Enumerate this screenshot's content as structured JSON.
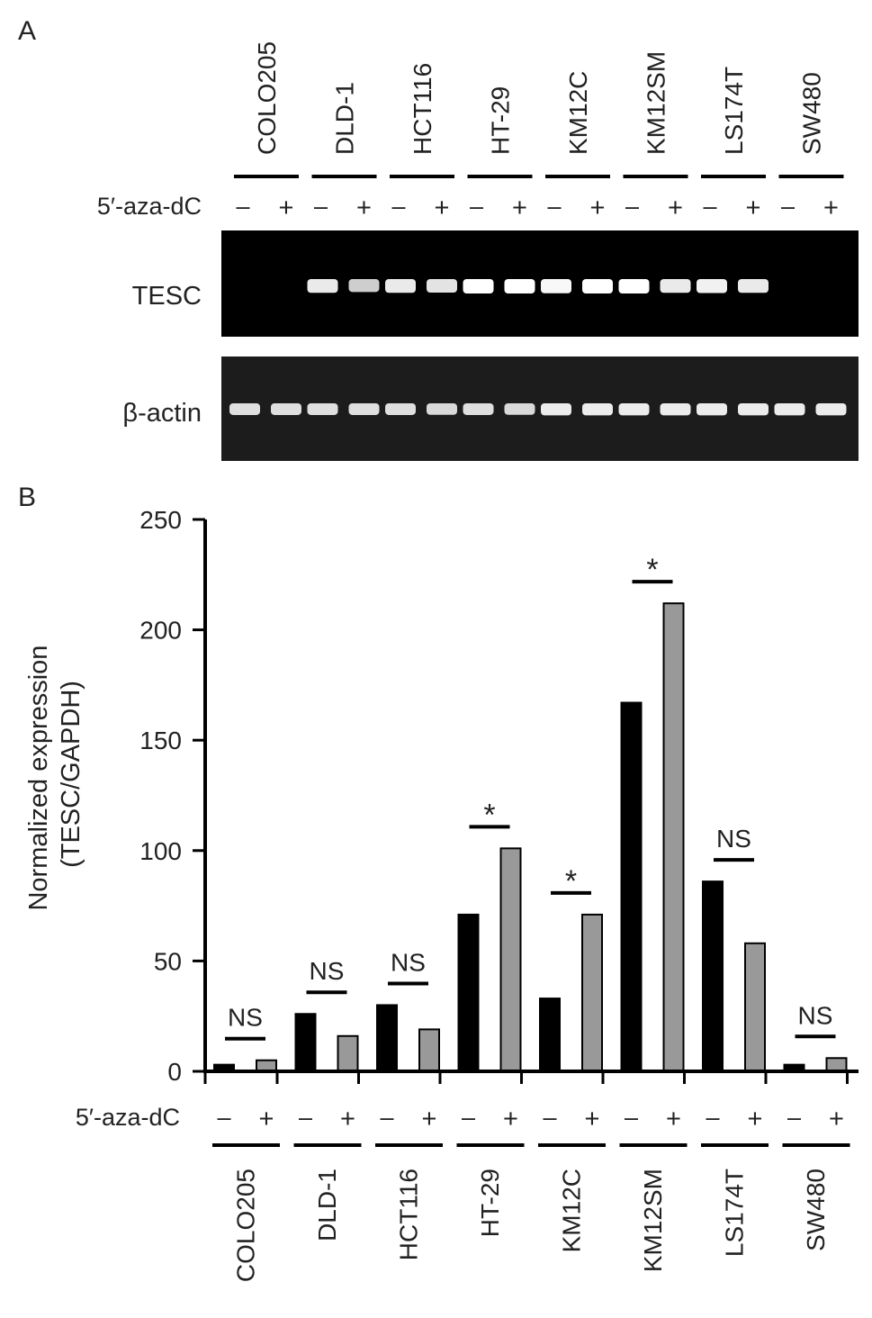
{
  "panel_a": {
    "label": "A",
    "treatment_label": "5′-aza-dC",
    "minus": "–",
    "plus": "+",
    "cell_lines": [
      "COLO205",
      "DLD-1",
      "HCT116",
      "HT-29",
      "KM12C",
      "KM12SM",
      "LS174T",
      "SW480"
    ],
    "gels": [
      {
        "name": "TESC",
        "band_intensity": [
          0,
          0,
          0.85,
          0.65,
          0.85,
          0.8,
          1.0,
          1.0,
          0.95,
          1.0,
          1.0,
          0.85,
          0.9,
          0.85,
          0,
          0
        ]
      },
      {
        "name": "β-actin",
        "band_intensity": [
          0.75,
          0.75,
          0.75,
          0.75,
          0.75,
          0.7,
          0.75,
          0.7,
          0.85,
          0.85,
          0.85,
          0.85,
          0.85,
          0.85,
          0.85,
          0.85
        ]
      }
    ],
    "colors": {
      "gel_background": "#000000",
      "actin_gel_background": "#1c1c1c",
      "band": "#ffffff"
    }
  },
  "panel_b": {
    "label": "B",
    "treatment_label": "5′-aza-dC",
    "minus": "–",
    "plus": "+"
  },
  "chart_data": {
    "type": "bar",
    "categories": [
      "COLO205",
      "DLD-1",
      "HCT116",
      "HT-29",
      "KM12C",
      "KM12SM",
      "LS174T",
      "SW480"
    ],
    "series": [
      {
        "name": "–",
        "color": "#000000",
        "values": [
          3,
          26,
          30,
          71,
          33,
          167,
          86,
          3
        ]
      },
      {
        "name": "+",
        "color": "#999999",
        "values": [
          5,
          16,
          19,
          101,
          71,
          212,
          58,
          6
        ]
      }
    ],
    "significance": [
      "NS",
      "NS",
      "NS",
      "*",
      "*",
      "*",
      "NS",
      "NS"
    ],
    "title": "",
    "xlabel": "",
    "ylabel_lines": [
      "Normalized expression",
      "(TESC/GAPDH)"
    ],
    "ylim": [
      0,
      250
    ],
    "yticks": [
      0,
      50,
      100,
      150,
      200,
      250
    ],
    "grid": false,
    "legend": "none"
  }
}
